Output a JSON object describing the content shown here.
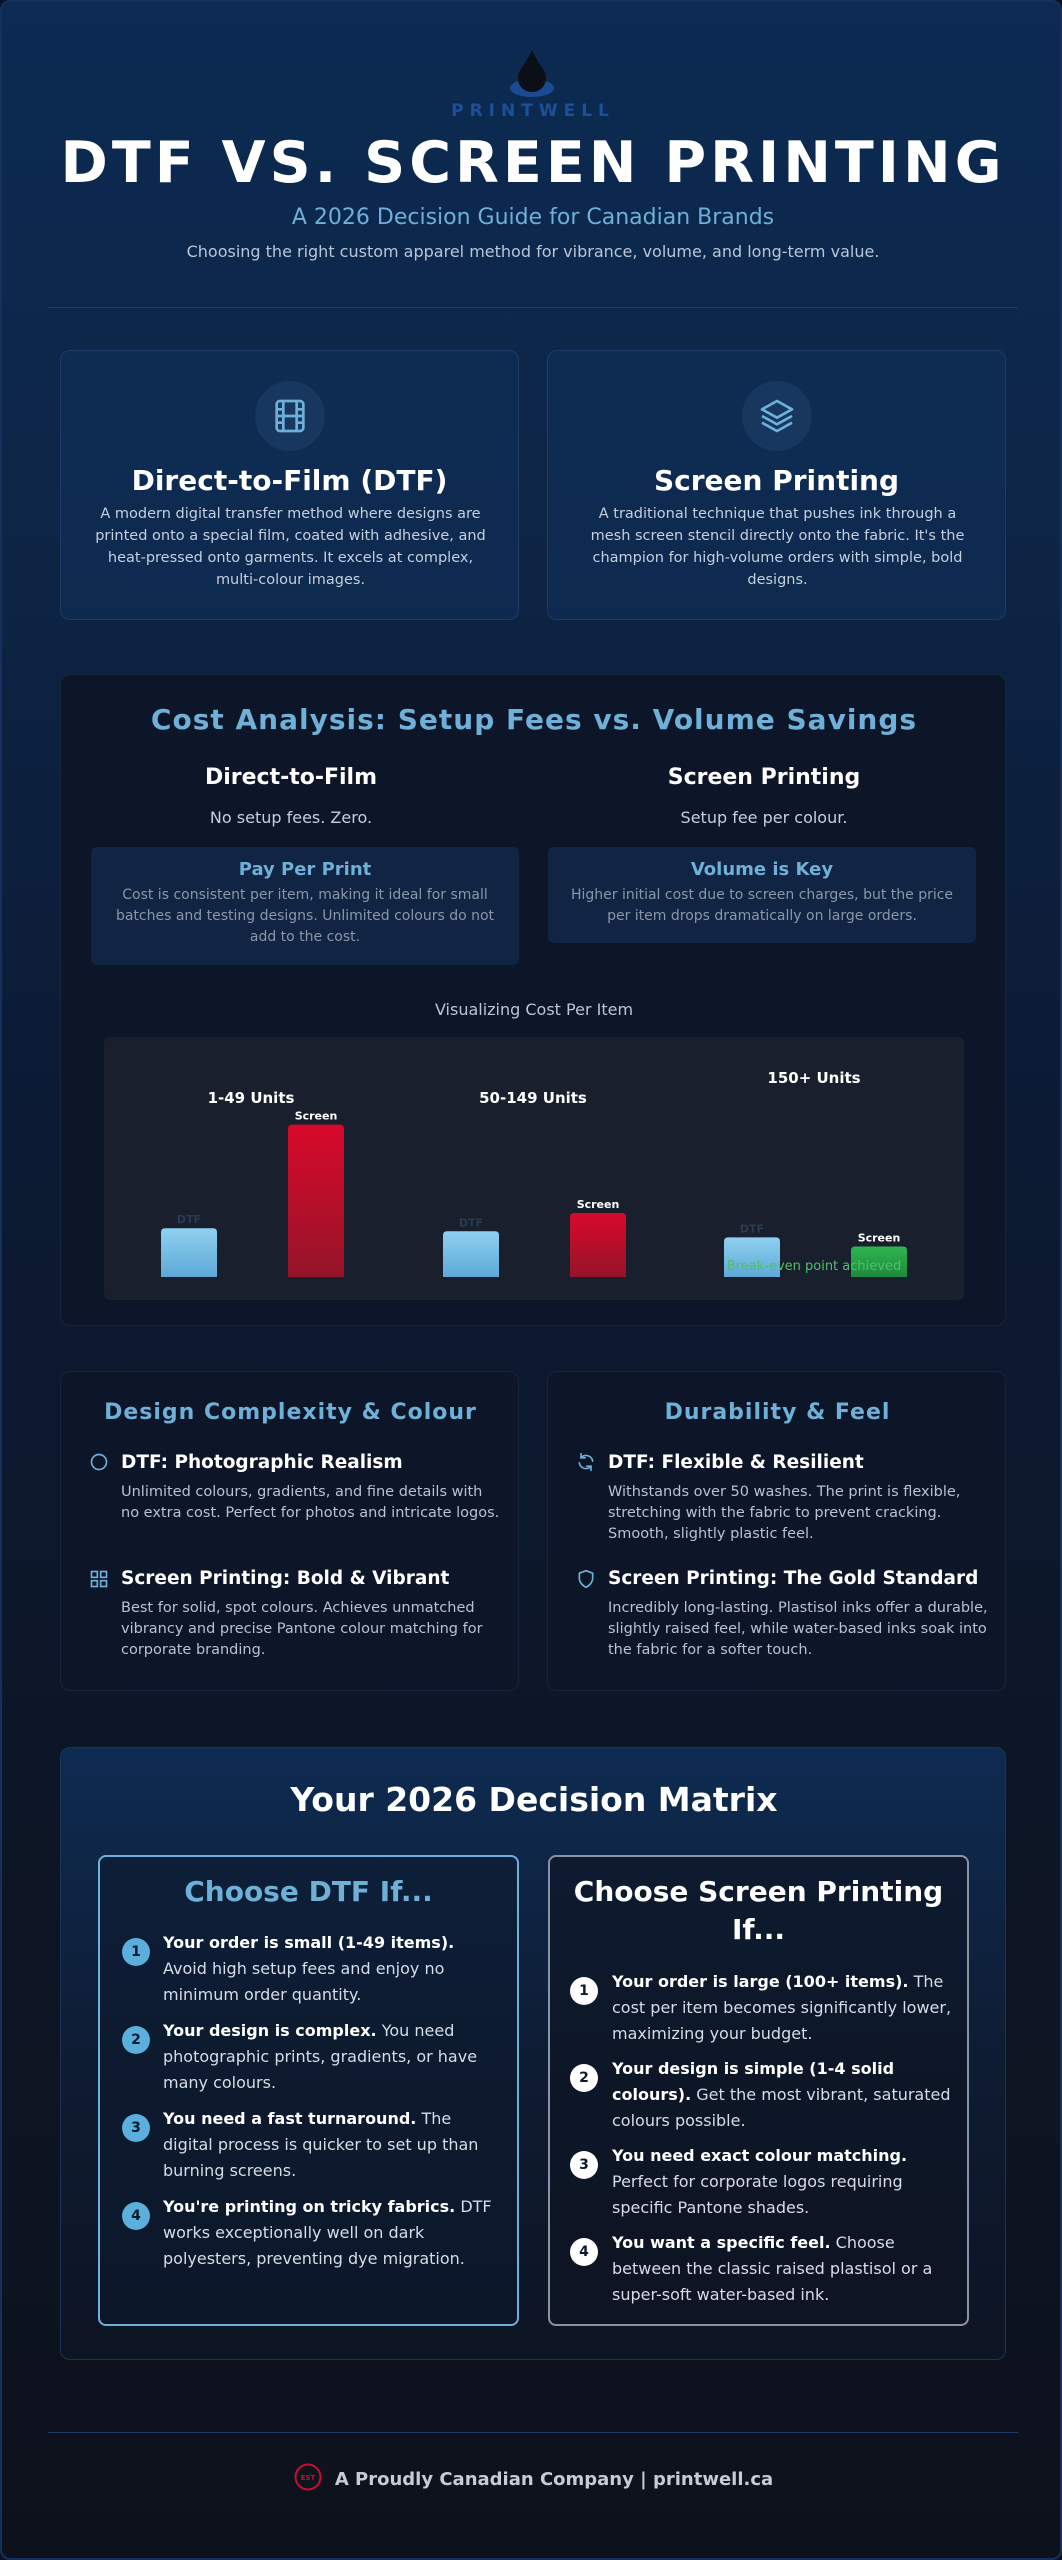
{
  "brand": {
    "name": "PRINTWELL",
    "footer_badge": "EST"
  },
  "header": {
    "title": "DTF VS. SCREEN PRINTING",
    "subtitle": "A 2026 Decision Guide for Canadian Brands",
    "tagline": "Choosing the right custom apparel method for vibrance, volume, and long-term value."
  },
  "methods": [
    {
      "icon": "film-icon",
      "title": "Direct-to-Film (DTF)",
      "desc": "A modern digital transfer method where designs are printed onto a special film, coated with adhesive, and heat-pressed onto garments. It excels at complex, multi-colour images."
    },
    {
      "icon": "layers-icon",
      "title": "Screen Printing",
      "desc": "A traditional technique that pushes ink through a mesh screen stencil directly onto the fabric. It's the champion for high-volume orders with simple, bold designs."
    }
  ],
  "cost": {
    "title": "Cost Analysis: Setup Fees vs. Volume Savings",
    "columns": [
      {
        "title": "Direct-to-Film",
        "sub": "No setup fees. Zero.",
        "box_title": "Pay Per Print",
        "box_text": "Cost is consistent per item, making it ideal for small batches and testing designs. Unlimited colours do not add to the cost."
      },
      {
        "title": "Screen Printing",
        "sub": "Setup fee per colour.",
        "box_title": "Volume is Key",
        "box_text": "Higher initial cost due to screen charges, but the price per item drops dramatically on large orders."
      }
    ],
    "chart_caption": "Visualizing Cost Per Item",
    "breakeven": "Break-even point achieved"
  },
  "chart_data": {
    "type": "bar",
    "title": "Visualizing Cost Per Item",
    "categories": [
      "1-49 Units",
      "50-149 Units",
      "150+ Units"
    ],
    "series": [
      {
        "name": "DTF",
        "values": [
          32,
          30,
          26
        ]
      },
      {
        "name": "Screen",
        "values": [
          100,
          42,
          20
        ]
      }
    ],
    "bar_labels": [
      "DTF",
      "Screen"
    ],
    "colors": {
      "dtf": "#6fb8e2",
      "screen": "#c8102e",
      "screen_breakeven": "#28a745"
    },
    "ylim": [
      0,
      105
    ],
    "grid": false
  },
  "features": [
    {
      "title": "Design Complexity & Colour",
      "items": [
        {
          "icon": "circle-icon",
          "title": "DTF: Photographic Realism",
          "desc": "Unlimited colours, gradients, and fine details with no extra cost. Perfect for photos and intricate logos."
        },
        {
          "icon": "grid-icon",
          "title": "Screen Printing: Bold & Vibrant",
          "desc": "Best for solid, spot colours. Achieves unmatched vibrancy and precise Pantone colour matching for corporate branding."
        }
      ]
    },
    {
      "title": "Durability & Feel",
      "items": [
        {
          "icon": "refresh-icon",
          "title": "DTF: Flexible & Resilient",
          "desc": "Withstands over 50 washes. The print is flexible, stretching with the fabric to prevent cracking. Smooth, slightly plastic feel."
        },
        {
          "icon": "shield-icon",
          "title": "Screen Printing: The Gold Standard",
          "desc": "Incredibly long-lasting. Plastisol inks offer a durable, slightly raised feel, while water-based inks soak into the fabric for a softer touch."
        }
      ]
    }
  ],
  "matrix": {
    "title": "Your 2026 Decision Matrix",
    "dtf": {
      "heading": "Choose DTF If...",
      "items": [
        {
          "num": "1",
          "bold": "Your order is small (1-49 items).",
          "text": " Avoid high setup fees and enjoy no minimum order quantity."
        },
        {
          "num": "2",
          "bold": "Your design is complex.",
          "text": " You need photographic prints, gradients, or have many colours."
        },
        {
          "num": "3",
          "bold": "You need a fast turnaround.",
          "text": " The digital process is quicker to set up than burning screens."
        },
        {
          "num": "4",
          "bold": "You're printing on tricky fabrics.",
          "text": " DTF works exceptionally well on dark polyesters, preventing dye migration."
        }
      ]
    },
    "screen": {
      "heading": "Choose Screen Printing If...",
      "items": [
        {
          "num": "1",
          "bold": "Your order is large (100+ items).",
          "text": " The cost per item becomes significantly lower, maximizing your budget."
        },
        {
          "num": "2",
          "bold": "Your design is simple (1-4 solid colours).",
          "text": " Get the most vibrant, saturated colours possible."
        },
        {
          "num": "3",
          "bold": "You need exact colour matching.",
          "text": " Perfect for corporate logos requiring specific Pantone shades."
        },
        {
          "num": "4",
          "bold": "You want a specific feel.",
          "text": " Choose between the classic raised plastisol or a super-soft water-based ink."
        }
      ]
    }
  },
  "footer": {
    "text": "A Proudly Canadian Company | printwell.ca"
  }
}
